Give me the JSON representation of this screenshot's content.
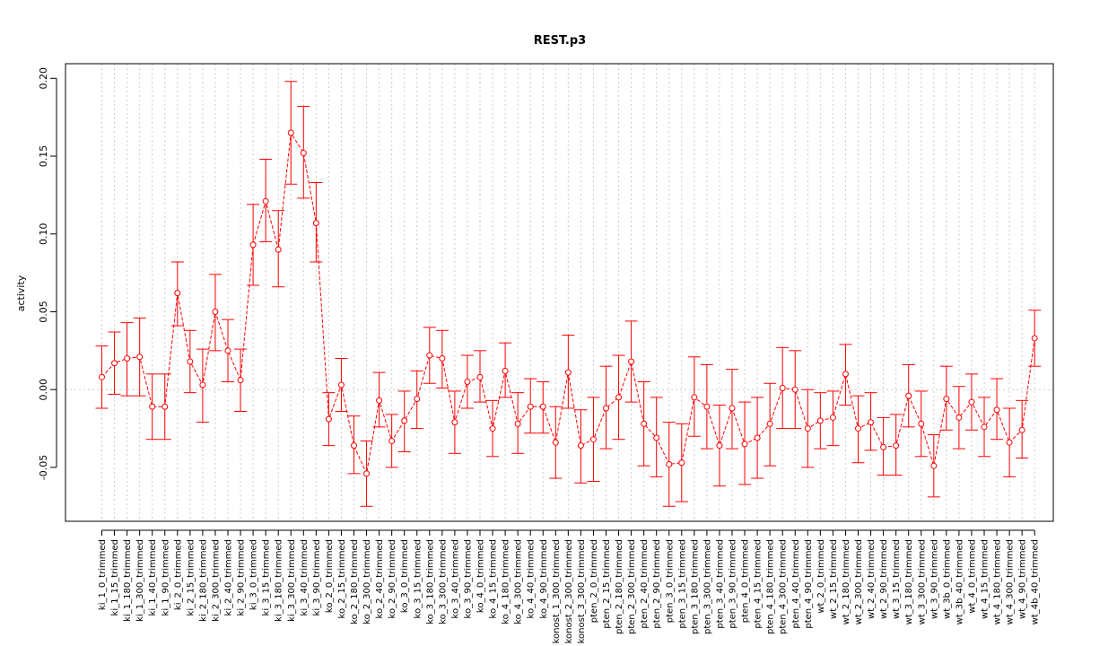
{
  "chart_data": {
    "type": "line",
    "title": "REST.p3",
    "xlabel": "",
    "ylabel": "activity",
    "ylim": [
      -0.085,
      0.21
    ],
    "yticks": [
      -0.05,
      0.0,
      0.05,
      0.1,
      0.15,
      0.2
    ],
    "ytick_labels": [
      "-0.05",
      "0.00",
      "0.05",
      "0.10",
      "0.15",
      "0.20"
    ],
    "grid": true,
    "colors": {
      "series": "#ff0000",
      "grid": "#cccccc",
      "axis": "#000000"
    },
    "categories": [
      "ki_1_0_trimmed",
      "ki_1_15_trimmed",
      "ki_1_180_trimmed",
      "ki_1_300_trimmed",
      "ki_1_40_trimmed",
      "ki_1_90_trimmed",
      "ki_2_0_trimmed",
      "ki_2_15_trimmed",
      "ki_2_180_trimmed",
      "ki_2_300_trimmed",
      "ki_2_40_trimmed",
      "ki_2_90_trimmed",
      "ki_3_0_trimmed",
      "ki_3_15_trimmed",
      "ki_3_180_trimmed",
      "ki_3_300_trimmed",
      "ki_3_40_trimmed",
      "ki_3_90_trimmed",
      "ko_2_0_trimmed",
      "ko_2_15_trimmed",
      "ko_2_180_trimmed",
      "ko_2_300_trimmed",
      "ko_2_40_trimmed",
      "ko_2_90_trimmed",
      "ko_3_0_trimmed",
      "ko_3_15_trimmed",
      "ko_3_180_trimmed",
      "ko_3_300_trimmed",
      "ko_3_40_trimmed",
      "ko_3_90_trimmed",
      "ko_4_0_trimmed",
      "ko_4_15_trimmed",
      "ko_4_180_trimmed",
      "ko_4_300_trimmed",
      "ko_4_40_trimmed",
      "ko_4_90_trimmed",
      "konost_1_300_trimmed",
      "konost_2_300_trimmed",
      "konost_3_300_trimmed",
      "pten_2_0_trimmed",
      "pten_2_15_trimmed",
      "pten_2_180_trimmed",
      "pten_2_300_trimmed",
      "pten_2_40_trimmed",
      "pten_2_90_trimmed",
      "pten_3_0_trimmed",
      "pten_3_15_trimmed",
      "pten_3_180_trimmed",
      "pten_3_300_trimmed",
      "pten_3_40_trimmed",
      "pten_3_90_trimmed",
      "pten_4_0_trimmed",
      "pten_4_15_trimmed",
      "pten_4_180_trimmed",
      "pten_4_300_trimmed",
      "pten_4_40_trimmed",
      "pten_4_90_trimmed",
      "wt_2_0_trimmed",
      "wt_2_15_trimmed",
      "wt_2_180_trimmed",
      "wt_2_300_trimmed",
      "wt_2_40_trimmed",
      "wt_2_90_trimmed",
      "wt_3_15_trimmed",
      "wt_3_180_trimmed",
      "wt_3_300_trimmed",
      "wt_3_90_trimmed",
      "wt_3b_0_trimmed",
      "wt_3b_40_trimmed",
      "wt_4_0_trimmed",
      "wt_4_15_trimmed",
      "wt_4_180_trimmed",
      "wt_4_300_trimmed",
      "wt_4_90_trimmed",
      "wt_4b_40_trimmed"
    ],
    "series": [
      {
        "values": [
          0.008,
          0.017,
          0.02,
          0.021,
          -0.011,
          -0.011,
          0.062,
          0.018,
          0.003,
          0.05,
          0.025,
          0.006,
          0.093,
          0.121,
          0.09,
          0.165,
          0.152,
          0.107,
          -0.019,
          0.003,
          -0.036,
          -0.054,
          -0.007,
          -0.033,
          -0.02,
          -0.006,
          0.022,
          0.02,
          -0.021,
          0.005,
          0.008,
          -0.025,
          0.012,
          -0.022,
          -0.011,
          -0.011,
          -0.034,
          0.011,
          -0.036,
          -0.032,
          -0.012,
          -0.005,
          0.018,
          -0.022,
          -0.031,
          -0.048,
          -0.047,
          -0.005,
          -0.011,
          -0.036,
          -0.012,
          -0.035,
          -0.031,
          -0.022,
          0.001,
          0.0,
          -0.025,
          -0.02,
          -0.018,
          0.01,
          -0.025,
          -0.021,
          -0.037,
          -0.036,
          -0.004,
          -0.022,
          -0.049,
          -0.006,
          -0.018,
          -0.008,
          -0.024,
          -0.013,
          -0.034,
          -0.026,
          0.033
        ],
        "lower": [
          -0.012,
          -0.003,
          -0.004,
          -0.004,
          -0.032,
          -0.032,
          0.041,
          -0.002,
          -0.021,
          0.025,
          0.005,
          -0.014,
          0.067,
          0.095,
          0.066,
          0.132,
          0.123,
          0.082,
          -0.036,
          -0.014,
          -0.054,
          -0.075,
          -0.024,
          -0.05,
          -0.04,
          -0.025,
          0.004,
          0.001,
          -0.041,
          -0.012,
          -0.008,
          -0.043,
          -0.005,
          -0.041,
          -0.028,
          -0.028,
          -0.057,
          -0.012,
          -0.06,
          -0.059,
          -0.038,
          -0.032,
          -0.008,
          -0.049,
          -0.056,
          -0.075,
          -0.072,
          -0.03,
          -0.038,
          -0.062,
          -0.038,
          -0.061,
          -0.057,
          -0.049,
          -0.025,
          -0.025,
          -0.05,
          -0.038,
          -0.036,
          -0.01,
          -0.047,
          -0.039,
          -0.055,
          -0.055,
          -0.024,
          -0.043,
          -0.069,
          -0.026,
          -0.038,
          -0.026,
          -0.043,
          -0.032,
          -0.056,
          -0.044,
          0.015
        ],
        "upper": [
          0.028,
          0.037,
          0.043,
          0.046,
          0.01,
          0.01,
          0.082,
          0.038,
          0.026,
          0.074,
          0.045,
          0.026,
          0.119,
          0.148,
          0.115,
          0.198,
          0.182,
          0.133,
          -0.002,
          0.02,
          -0.017,
          -0.033,
          0.011,
          -0.016,
          -0.001,
          0.012,
          0.04,
          0.038,
          -0.001,
          0.022,
          0.025,
          -0.007,
          0.03,
          -0.002,
          0.007,
          0.005,
          -0.011,
          0.035,
          -0.013,
          -0.005,
          0.015,
          0.022,
          0.044,
          0.005,
          -0.005,
          -0.021,
          -0.022,
          0.021,
          0.016,
          -0.01,
          0.013,
          -0.008,
          -0.005,
          0.004,
          0.027,
          0.025,
          0.0,
          -0.002,
          -0.001,
          0.029,
          -0.004,
          -0.002,
          -0.018,
          -0.016,
          0.016,
          -0.001,
          -0.029,
          0.015,
          0.002,
          0.01,
          -0.005,
          0.007,
          -0.012,
          -0.007,
          0.051
        ]
      }
    ]
  }
}
